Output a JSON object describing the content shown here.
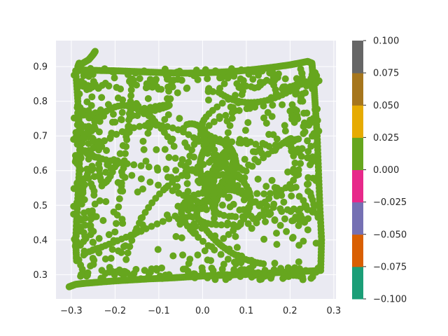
{
  "chart_data": {
    "type": "scatter",
    "title": "",
    "xlabel": "",
    "ylabel": "",
    "xlim": [
      -0.335,
      0.305
    ],
    "ylim": [
      0.23,
      0.975
    ],
    "x_ticks": [
      {
        "value": -0.3,
        "label": "−0.3"
      },
      {
        "value": -0.2,
        "label": "−0.2"
      },
      {
        "value": -0.1,
        "label": "−0.1"
      },
      {
        "value": 0.0,
        "label": "0.0"
      },
      {
        "value": 0.1,
        "label": "0.1"
      },
      {
        "value": 0.2,
        "label": "0.2"
      },
      {
        "value": 0.3,
        "label": "0.3"
      }
    ],
    "y_ticks": [
      {
        "value": 0.3,
        "label": "0.3"
      },
      {
        "value": 0.4,
        "label": "0.4"
      },
      {
        "value": 0.5,
        "label": "0.5"
      },
      {
        "value": 0.6,
        "label": "0.6"
      },
      {
        "value": 0.7,
        "label": "0.7"
      },
      {
        "value": 0.8,
        "label": "0.8"
      },
      {
        "value": 0.9,
        "label": "0.9"
      }
    ],
    "grid": true,
    "point_color": "#66a61e",
    "background_color": "#eaeaf2",
    "series": [
      {
        "name": "",
        "color_value": 0.0,
        "outline": {
          "x": [
            -0.305,
            -0.29,
            -0.27,
            -0.24,
            -0.2,
            -0.16,
            -0.12,
            -0.08,
            -0.04,
            0.0,
            0.04,
            0.08,
            0.12,
            0.16,
            0.2,
            0.24,
            0.27,
            0.272,
            0.268,
            0.265,
            0.262,
            0.258,
            0.255,
            0.252,
            0.25,
            0.24,
            0.2,
            0.16,
            0.12,
            0.08,
            0.04,
            0.0,
            -0.04,
            -0.08,
            -0.12,
            -0.16,
            -0.2,
            -0.24,
            -0.27,
            -0.29,
            -0.285,
            -0.28,
            -0.282,
            -0.286,
            -0.29,
            -0.288,
            -0.285,
            -0.282,
            -0.28,
            -0.26,
            -0.25,
            -0.245
          ],
          "y": [
            0.265,
            0.272,
            0.275,
            0.278,
            0.282,
            0.285,
            0.288,
            0.29,
            0.293,
            0.296,
            0.298,
            0.3,
            0.302,
            0.305,
            0.308,
            0.31,
            0.312,
            0.4,
            0.5,
            0.6,
            0.7,
            0.78,
            0.84,
            0.88,
            0.91,
            0.915,
            0.905,
            0.898,
            0.892,
            0.887,
            0.884,
            0.882,
            0.881,
            0.882,
            0.884,
            0.886,
            0.888,
            0.889,
            0.89,
            0.888,
            0.8,
            0.7,
            0.6,
            0.5,
            0.4,
            0.34,
            0.9,
            0.91,
            0.905,
            0.92,
            0.935,
            0.945
          ]
        },
        "interior_x_range": [
          -0.28,
          0.26
        ],
        "interior_y_range": [
          0.29,
          0.89
        ]
      }
    ],
    "colorbar": {
      "range": [
        -0.1,
        0.1
      ],
      "colors": [
        "#1b9e77",
        "#d95f02",
        "#7570b3",
        "#e7298a",
        "#66a61e",
        "#e6ab02",
        "#a6761d",
        "#666666"
      ],
      "ticks": [
        {
          "value": 0.1,
          "label": "0.100"
        },
        {
          "value": 0.075,
          "label": "0.075"
        },
        {
          "value": 0.05,
          "label": "0.050"
        },
        {
          "value": 0.025,
          "label": "0.025"
        },
        {
          "value": 0.0,
          "label": "0.000"
        },
        {
          "value": -0.025,
          "label": "−0.025"
        },
        {
          "value": -0.05,
          "label": "−0.050"
        },
        {
          "value": -0.075,
          "label": "−0.075"
        },
        {
          "value": -0.1,
          "label": "−0.100"
        }
      ]
    }
  }
}
